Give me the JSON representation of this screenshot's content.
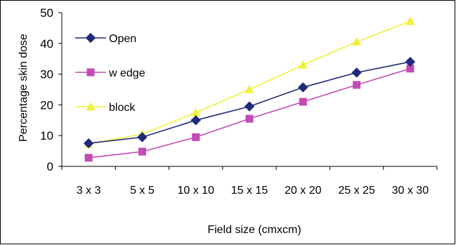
{
  "chart_data": {
    "type": "line",
    "title": "",
    "xlabel": "Field size (cmxcm)",
    "ylabel": "Percentage skin dose",
    "categories": [
      "3 x 3",
      "5 x 5",
      "10 x 10",
      "15 x 15",
      "20 x 20",
      "25 x 25",
      "30 x 30"
    ],
    "ylim": [
      0,
      50
    ],
    "yticks": [
      "0",
      "10",
      "20",
      "30",
      "40",
      "50"
    ],
    "grid": false,
    "legend_position": "top-left",
    "series": [
      {
        "name": "Open",
        "color": "#1f2a7a",
        "marker": "diamond",
        "values": [
          7.5,
          9.5,
          15,
          19.5,
          25.7,
          30.5,
          34
        ]
      },
      {
        "name": "w edge",
        "color": "#c24bb5",
        "marker": "square",
        "values": [
          2.8,
          4.8,
          9.5,
          15.5,
          21,
          26.5,
          31.8
        ]
      },
      {
        "name": "block",
        "color": "#f0f03a",
        "marker": "triangle",
        "values": [
          7.3,
          10.5,
          17.5,
          25,
          33,
          40.5,
          47.2
        ]
      }
    ]
  }
}
